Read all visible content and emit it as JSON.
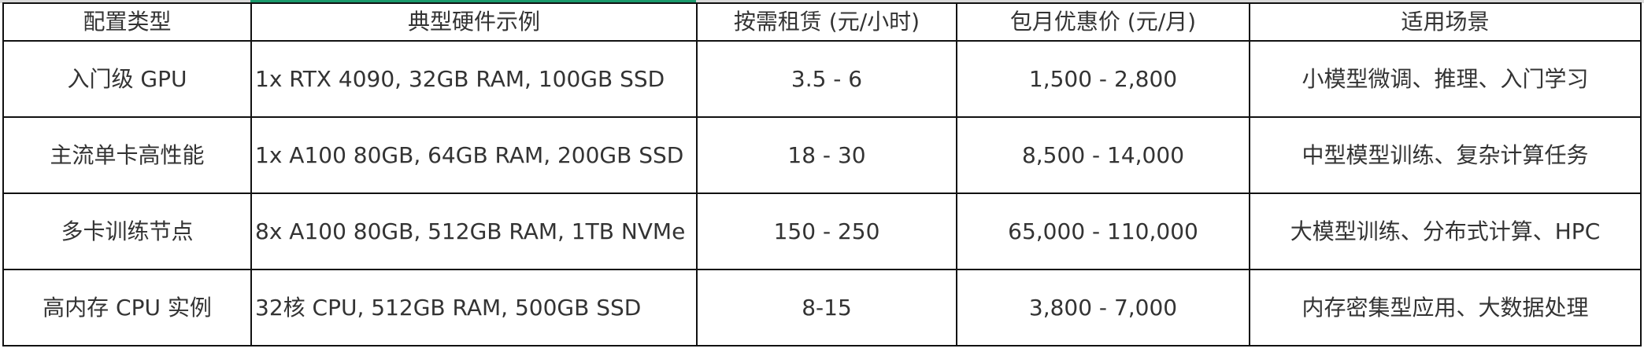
{
  "colors": {
    "accent": "#1a9a6c",
    "border": "#111111",
    "top_bar": "#d9d9d9"
  },
  "table": {
    "headers": [
      "配置类型",
      "典型硬件示例",
      "按需租赁 (元/小时)",
      "包月优惠价 (元/月)",
      "适用场景"
    ],
    "rows": [
      [
        "入门级 GPU",
        "1x RTX 4090, 32GB RAM, 100GB SSD",
        "3.5 - 6",
        "1,500 - 2,800",
        "小模型微调、推理、入门学习"
      ],
      [
        "主流单卡高性能",
        "1x A100 80GB, 64GB RAM, 200GB SSD",
        "18 - 30",
        "8,500 - 14,000",
        "中型模型训练、复杂计算任务"
      ],
      [
        "多卡训练节点",
        "8x A100 80GB, 512GB RAM, 1TB NVMe",
        "150 - 250",
        "65,000 - 110,000",
        "大模型训练、分布式计算、HPC"
      ],
      [
        "高内存 CPU 实例",
        "32核 CPU, 512GB RAM, 500GB SSD",
        "8-15",
        "3,800 - 7,000",
        "内存密集型应用、大数据处理"
      ]
    ]
  }
}
